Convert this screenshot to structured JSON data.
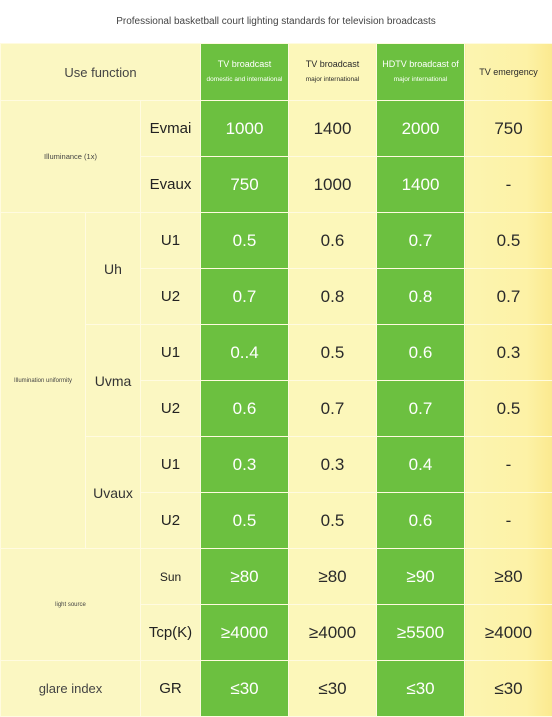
{
  "title": "Professional basketball court lighting standards for television broadcasts",
  "header": {
    "use_function": "Use function",
    "columns": [
      {
        "label": "TV broadcast",
        "sub": "domestic and international"
      },
      {
        "label": "TV broadcast",
        "sub": "major international"
      },
      {
        "label": "HDTV broadcast of",
        "sub": "major international"
      },
      {
        "label": "TV emergency",
        "sub": ""
      }
    ]
  },
  "sections": {
    "illuminance": "Illuminance (1x)",
    "uniformity": "Illumination uniformity",
    "light_source": "light source",
    "glare": "glare index"
  },
  "subgroups": {
    "uh": "Uh",
    "uvma": "Uvma",
    "uvaux": "Uvaux"
  },
  "rows": [
    {
      "metric": "Evmai",
      "values": [
        "1000",
        "1400",
        "2000",
        "750"
      ]
    },
    {
      "metric": "Evaux",
      "values": [
        "750",
        "1000",
        "1400",
        "-"
      ]
    },
    {
      "metric": "U1",
      "values": [
        "0.5",
        "0.6",
        "0.7",
        "0.5"
      ]
    },
    {
      "metric": "U2",
      "values": [
        "0.7",
        "0.8",
        "0.8",
        "0.7"
      ]
    },
    {
      "metric": "U1",
      "values": [
        "0..4",
        "0.5",
        "0.6",
        "0.3"
      ]
    },
    {
      "metric": "U2",
      "values": [
        "0.6",
        "0.7",
        "0.7",
        "0.5"
      ]
    },
    {
      "metric": "U1",
      "values": [
        "0.3",
        "0.3",
        "0.4",
        "-"
      ]
    },
    {
      "metric": "U2",
      "values": [
        "0.5",
        "0.5",
        "0.6",
        "-"
      ]
    },
    {
      "metric": "Sun",
      "values": [
        "≥80",
        "≥80",
        "≥90",
        "≥80"
      ]
    },
    {
      "metric": "Tcp(K)",
      "values": [
        "≥4000",
        "≥4000",
        "≥5500",
        "≥4000"
      ]
    },
    {
      "metric": "GR",
      "values": [
        "≤30",
        "≤30",
        "≤30",
        "≤30"
      ]
    }
  ],
  "colors": {
    "green": "#6cc040",
    "pale_yellow": "#fbf7c2",
    "border": "#fffbe0"
  }
}
